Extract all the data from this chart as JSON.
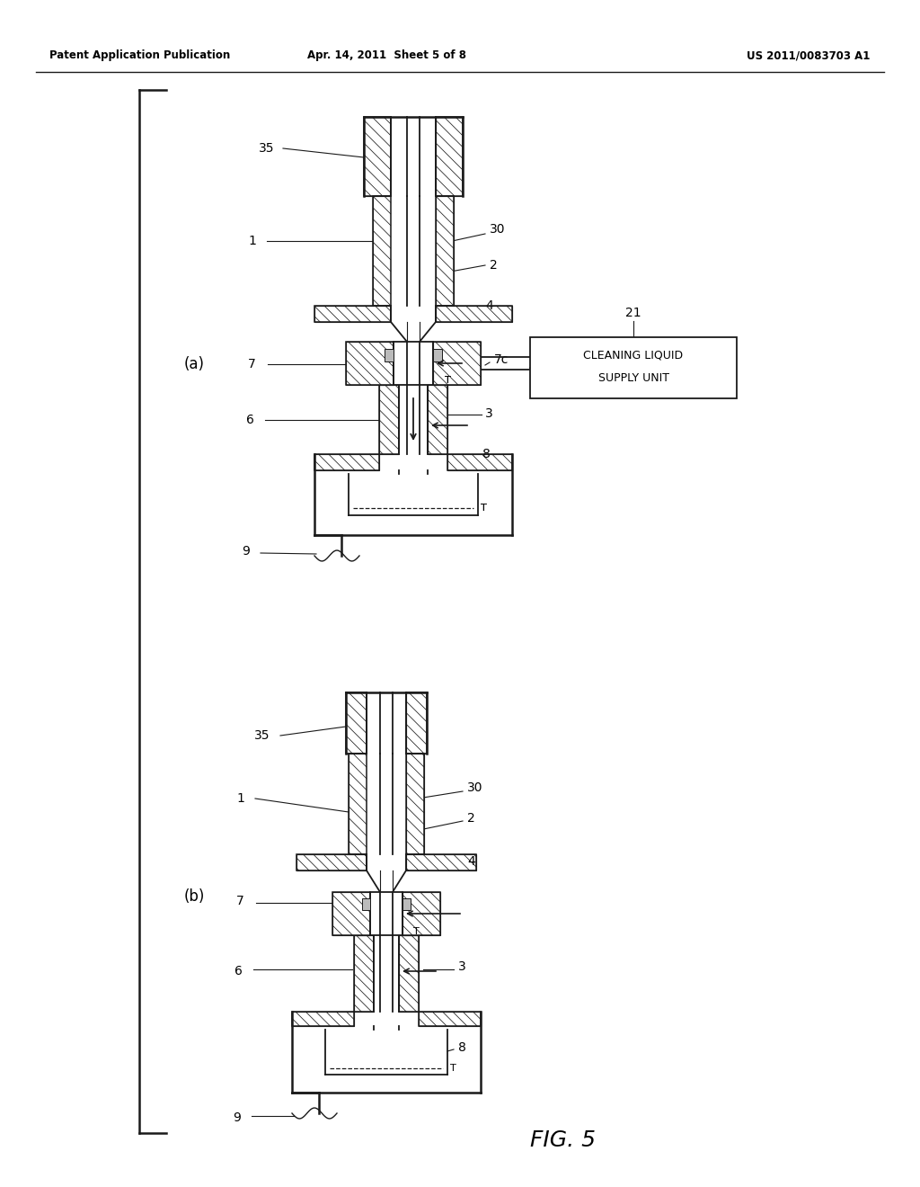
{
  "bg_color": "#ffffff",
  "line_color": "#1a1a1a",
  "header_left": "Patent Application Publication",
  "header_center": "Apr. 14, 2011  Sheet 5 of 8",
  "header_right": "US 2011/0083703 A1",
  "fig_label": "FIG. 5",
  "label_a": "(a)",
  "label_b": "(b)",
  "box_text_line1": "CLEANING LIQUID",
  "box_text_line2": "SUPPLY UNIT"
}
